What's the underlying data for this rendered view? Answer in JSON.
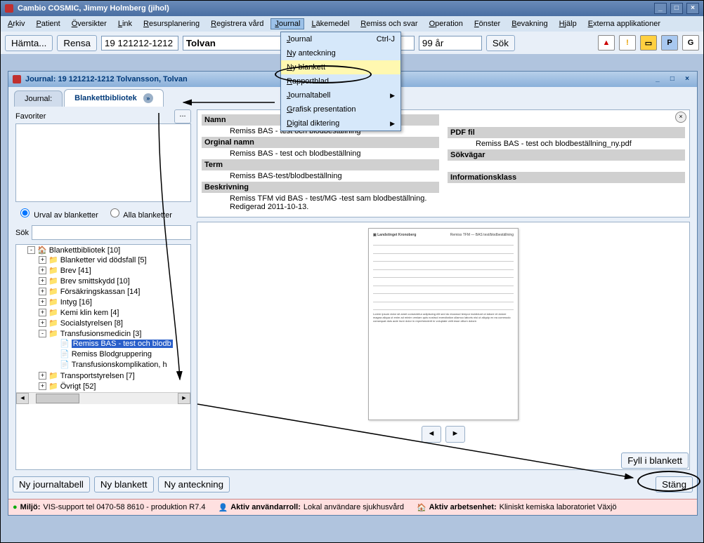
{
  "window": {
    "title": "Cambio COSMIC, Jimmy Holmberg (jihol)"
  },
  "menu": {
    "items": [
      "Arkiv",
      "Patient",
      "Översikter",
      "Link",
      "Resursplanering",
      "Registrera vård",
      "Journal",
      "Läkemedel",
      "Remiss och svar",
      "Operation",
      "Fönster",
      "Bevakning",
      "Hjälp",
      "Externa applikationer"
    ],
    "active_index": 6
  },
  "dropdown": {
    "items": [
      {
        "label": "Journal",
        "shortcut": "Ctrl-J"
      },
      {
        "label": "Ny anteckning"
      },
      {
        "label": "Ny blankett",
        "highlight": true
      },
      {
        "label": "Rapportblad"
      },
      {
        "label": "Journaltabell",
        "submenu": true
      },
      {
        "label": "Grafisk presentation"
      },
      {
        "label": "Digital diktering",
        "submenu": true
      }
    ]
  },
  "toolbar": {
    "hamta": "Hämta...",
    "rensa": "Rensa",
    "patient_id": "19 121212-1212",
    "patient_name": "Tolvan",
    "age": "99 år",
    "sok": "Sök",
    "p": "P",
    "g": "G"
  },
  "subwindow": {
    "title": "Journal: 19 121212-1212 Tolvansson, Tolvan",
    "tabs": {
      "journal": "Journal:",
      "blankett": "Blankettbibliotek"
    }
  },
  "left": {
    "favoriter": "Favoriter",
    "radio1": "Urval av blanketter",
    "radio2": "Alla blanketter",
    "sok": "Sök"
  },
  "tree": {
    "root": "Blankettbibliotek [10]",
    "nodes": [
      {
        "label": "Blanketter vid dödsfall [5]"
      },
      {
        "label": "Brev [41]"
      },
      {
        "label": "Brev smittskydd [10]"
      },
      {
        "label": "Försäkringskassan [14]"
      },
      {
        "label": "Intyg [16]"
      },
      {
        "label": "Kemi klin kem [4]"
      },
      {
        "label": "Socialstyrelsen [8]"
      },
      {
        "label": "Transfusionsmedicin [3]",
        "open": true,
        "children": [
          {
            "label": "Remiss BAS - test och blodb",
            "selected": true
          },
          {
            "label": "Remiss Blodgruppering"
          },
          {
            "label": "Transfusionskomplikation, h"
          }
        ]
      },
      {
        "label": "Transportstyrelsen [7]"
      },
      {
        "label": "Övrigt [52]"
      }
    ]
  },
  "details": {
    "namn_l": "Namn",
    "namn_v": "Remiss BAS - test och blodbeställning",
    "orginal_l": "Orginal namn",
    "orginal_v": "Remiss BAS - test och blodbeställning",
    "term_l": "Term",
    "term_v": "Remiss BAS-test/blodbeställning",
    "besk_l": "Beskrivning",
    "besk_v": "Remiss TFM vid BAS - test/MG -test sam blodbeställning. Redigerad 2011-10-13.",
    "pdf_l": "PDF fil",
    "pdf_v": "Remiss BAS - test och blodbeställning_ny.pdf",
    "sokv_l": "Sökvägar",
    "info_l": "Informationsklass"
  },
  "buttons": {
    "fyll": "Fyll i blankett",
    "nyjournal": "Ny journaltabell",
    "nyblankett": "Ny blankett",
    "nyanteckning": "Ny anteckning",
    "stang": "Stäng"
  },
  "status": {
    "miljo_l": "Miljö:",
    "miljo_v": "VIS-support tel 0470-58 8610 - produktion R7.4",
    "roll_l": "Aktiv användarroll:",
    "roll_v": "Lokal användare sjukhusvård",
    "enhet_l": "Aktiv arbetsenhet:",
    "enhet_v": "Kliniskt kemiska laboratoriet Växjö"
  },
  "colors": {
    "title_grad_a": "#6a8bb8",
    "title_grad_b": "#4a6fa3",
    "menubar": "#d6e4f2",
    "toolbar": "#e8eff8",
    "dropdown": "#d6e8fa",
    "highlight": "#fff8b0",
    "selected": "#2a5fca",
    "status_bg": "#ffe0e0"
  }
}
